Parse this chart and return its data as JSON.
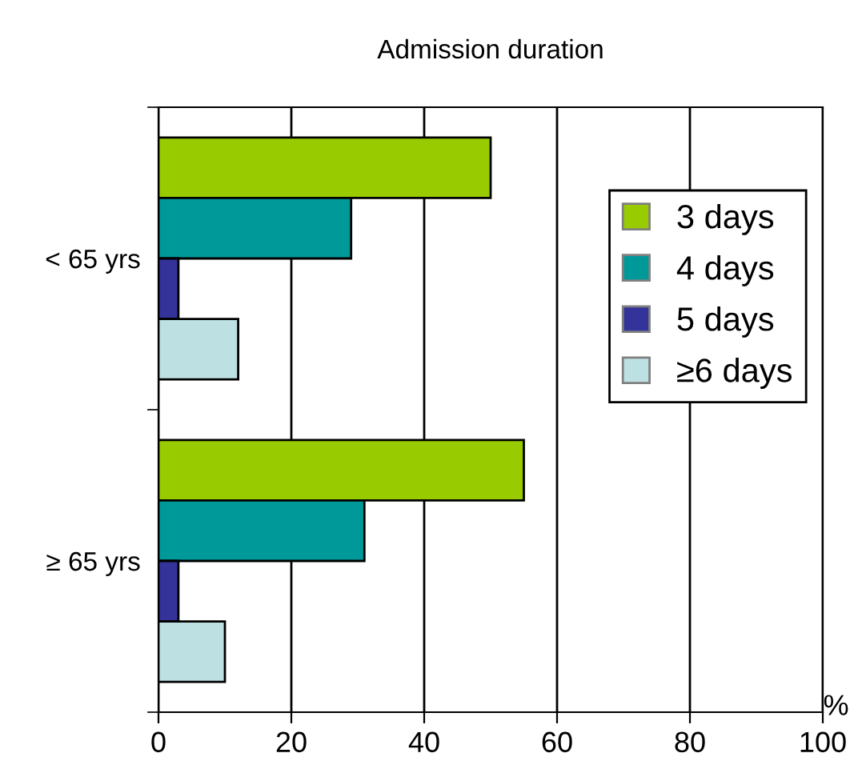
{
  "chart_data": {
    "type": "bar",
    "orientation": "horizontal",
    "title": "Admission duration",
    "xlabel": "%",
    "categories": [
      "< 65 yrs",
      "≥ 65 yrs"
    ],
    "series": [
      {
        "name": "3 days",
        "color": "#99cc00",
        "values": [
          50,
          55
        ]
      },
      {
        "name": "4 days",
        "color": "#009999",
        "values": [
          29,
          31
        ]
      },
      {
        "name": "5 days",
        "color": "#333399",
        "values": [
          3,
          3
        ]
      },
      {
        "name": "≥6 days",
        "color": "#bde0e3",
        "values": [
          12,
          10
        ]
      }
    ],
    "xlim": [
      0,
      100
    ],
    "xticks": [
      0,
      20,
      40,
      60,
      80,
      100
    ],
    "grid": "x",
    "legend": "top right"
  }
}
